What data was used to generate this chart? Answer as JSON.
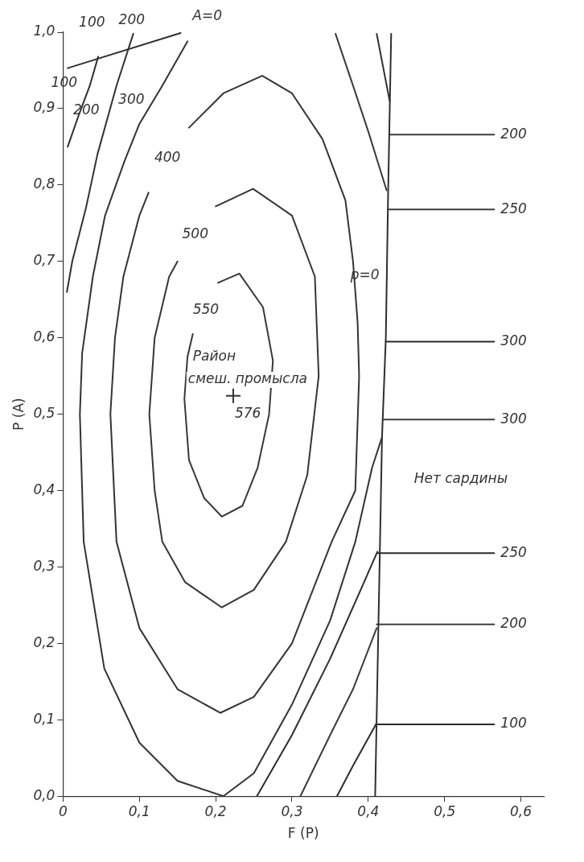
{
  "chart_data": {
    "type": "line",
    "xlabel": "F (P)",
    "ylabel": "P (A)",
    "xlim": [
      0,
      0.63
    ],
    "ylim": [
      0,
      1.0
    ],
    "xticks": [
      0,
      {
        "value": 0.1,
        "label": "0,1"
      },
      {
        "value": 0.2,
        "label": "0,2"
      },
      {
        "value": 0.3,
        "label": "0,3"
      },
      {
        "value": 0.4,
        "label": "0,4"
      },
      {
        "value": 0.5,
        "label": "0,5"
      },
      {
        "value": 0.6,
        "label": "0,6"
      }
    ],
    "yticks": [
      {
        "value": 0,
        "label": "0,0"
      },
      {
        "value": 0.1,
        "label": "0,1"
      },
      {
        "value": 0.2,
        "label": "0,2"
      },
      {
        "value": 0.3,
        "label": "0,3"
      },
      {
        "value": 0.4,
        "label": "0,4"
      },
      {
        "value": 0.5,
        "label": "0,5"
      },
      {
        "value": 0.6,
        "label": "0,6"
      },
      {
        "value": 0.7,
        "label": "0,7"
      },
      {
        "value": 0.8,
        "label": "0,8"
      },
      {
        "value": 0.9,
        "label": "0,9"
      },
      {
        "value": 1.0,
        "label": "1,0"
      }
    ],
    "marker": "none",
    "line_style": "solid",
    "series": [
      {
        "color": "#303030",
        "x": [
          0.006,
          0.154
        ],
        "values": [
          0.953,
          0.999
        ]
      },
      {
        "color": "#313131",
        "x": [
          0.046,
          0.035,
          0.02,
          0.006
        ],
        "values": [
          0.968,
          0.93,
          0.89,
          0.85
        ]
      },
      {
        "color": "#323232",
        "x": [
          0.092,
          0.07,
          0.045,
          0.03,
          0.012,
          0.005
        ],
        "values": [
          0.998,
          0.93,
          0.84,
          0.77,
          0.7,
          0.66
        ]
      },
      {
        "color": "#333333",
        "x": [
          0.163,
          0.13,
          0.1,
          0.08,
          0.055,
          0.039,
          0.025,
          0.022,
          0.027,
          0.054,
          0.1,
          0.15,
          0.21,
          0.25,
          0.3,
          0.35,
          0.383,
          0.405,
          0.418
        ],
        "values": [
          0.988,
          0.93,
          0.88,
          0.83,
          0.76,
          0.68,
          0.58,
          0.5,
          0.333,
          0.167,
          0.07,
          0.02,
          0.0,
          0.03,
          0.12,
          0.23,
          0.333,
          0.43,
          0.47
        ]
      },
      {
        "color": "#343434",
        "x": [
          0.165,
          0.21,
          0.261,
          0.3,
          0.34,
          0.37,
          0.38,
          0.386,
          0.388,
          0.383,
          0.352,
          0.3,
          0.25,
          0.206,
          0.15,
          0.1,
          0.07,
          0.062,
          0.068,
          0.079,
          0.1,
          0.112
        ],
        "values": [
          0.875,
          0.92,
          0.943,
          0.92,
          0.86,
          0.78,
          0.7,
          0.62,
          0.55,
          0.4,
          0.333,
          0.2,
          0.13,
          0.109,
          0.14,
          0.22,
          0.333,
          0.5,
          0.6,
          0.68,
          0.76,
          0.79
        ]
      },
      {
        "color": "#363636",
        "x": [
          0.2,
          0.249,
          0.3,
          0.33,
          0.335,
          0.32,
          0.292,
          0.25,
          0.208,
          0.16,
          0.13,
          0.12,
          0.113,
          0.12,
          0.139,
          0.15
        ],
        "values": [
          0.772,
          0.795,
          0.76,
          0.68,
          0.55,
          0.42,
          0.333,
          0.27,
          0.247,
          0.28,
          0.333,
          0.4,
          0.5,
          0.6,
          0.68,
          0.7
        ]
      },
      {
        "color": "#383838",
        "x": [
          0.203,
          0.231,
          0.262,
          0.275,
          0.27,
          0.255,
          0.235,
          0.208,
          0.185,
          0.165,
          0.159,
          0.163,
          0.17
        ],
        "values": [
          0.672,
          0.684,
          0.64,
          0.57,
          0.5,
          0.43,
          0.38,
          0.366,
          0.39,
          0.44,
          0.52,
          0.575,
          0.605
        ]
      },
      {
        "color": "#3a3a3a",
        "x": [
          0.357,
          0.38,
          0.4,
          0.424
        ],
        "values": [
          0.998,
          0.93,
          0.87,
          0.793
        ]
      },
      {
        "color": "#2f2f2f",
        "x": [
          0.411,
          0.428
        ],
        "values": [
          0.998,
          0.91
        ]
      },
      {
        "color": "#2e2e2e",
        "x": [
          0.43,
          0.426,
          0.423,
          0.418,
          0.409
        ],
        "values": [
          0.998,
          0.79,
          0.6,
          0.47,
          0.0
        ]
      },
      {
        "color": "#2d2d2d",
        "x": [
          0.254,
          0.3,
          0.35,
          0.39,
          0.412
        ],
        "values": [
          0.0,
          0.08,
          0.18,
          0.27,
          0.32
        ]
      },
      {
        "color": "#3b3b3b",
        "x": [
          0.311,
          0.35,
          0.38,
          0.411
        ],
        "values": [
          0.0,
          0.08,
          0.14,
          0.22
        ]
      },
      {
        "color": "#2c2c2c",
        "x": [
          0.359,
          0.38,
          0.41
        ],
        "values": [
          0.0,
          0.04,
          0.094
        ]
      },
      {
        "color": "#3c3c3c",
        "x": [
          0.428,
          0.565
        ],
        "values": [
          0.866,
          0.866
        ]
      },
      {
        "color": "#3d3d3d",
        "x": [
          0.426,
          0.565
        ],
        "values": [
          0.768,
          0.768
        ]
      },
      {
        "color": "#2b2b2b",
        "x": [
          0.423,
          0.565
        ],
        "values": [
          0.595,
          0.595
        ]
      },
      {
        "color": "#3e3e3e",
        "x": [
          0.419,
          0.565
        ],
        "values": [
          0.493,
          0.493
        ]
      },
      {
        "color": "#2a2a2a",
        "x": [
          0.412,
          0.565
        ],
        "values": [
          0.318,
          0.318
        ]
      },
      {
        "color": "#3f3f3f",
        "x": [
          0.411,
          0.565
        ],
        "values": [
          0.225,
          0.225
        ]
      },
      {
        "color": "#292929",
        "x": [
          0.41,
          0.565
        ],
        "values": [
          0.094,
          0.094
        ]
      },
      {
        "type": "scatter",
        "marker": "cross",
        "color": "#333333",
        "x": [
          0.223
        ],
        "values": [
          0.524
        ]
      }
    ],
    "annotations": [
      "A=0",
      "100",
      {
        "text": "200",
        "x": 0.09,
        "y": 1.0
      },
      {
        "text": "100",
        "x": 0.027,
        "y": 0.922
      },
      {
        "text": "200",
        "x": 0.056,
        "y": 0.886
      },
      {
        "text": "300",
        "x": 0.115,
        "y": 0.9
      },
      "400",
      "500",
      "550",
      {
        "text": "p=0",
        "x": 0.423,
        "y": 0.67
      },
      "Район",
      "смеш. промысла",
      {
        "text": "576",
        "x": 0.223,
        "y": 0.524
      },
      "Нет сардины",
      {
        "text": "200",
        "x": 0.565,
        "y": 0.866
      },
      {
        "text": "250",
        "x": 0.565,
        "y": 0.768
      },
      {
        "text": "300",
        "x": 0.565,
        "y": 0.595
      },
      {
        "text": "300",
        "x": 0.565,
        "y": 0.493
      },
      {
        "text": "250",
        "x": 0.565,
        "y": 0.318
      },
      {
        "text": "200",
        "x": 0.565,
        "y": 0.225
      },
      {
        "text": "100",
        "x": 0.565,
        "y": 0.094
      }
    ]
  }
}
